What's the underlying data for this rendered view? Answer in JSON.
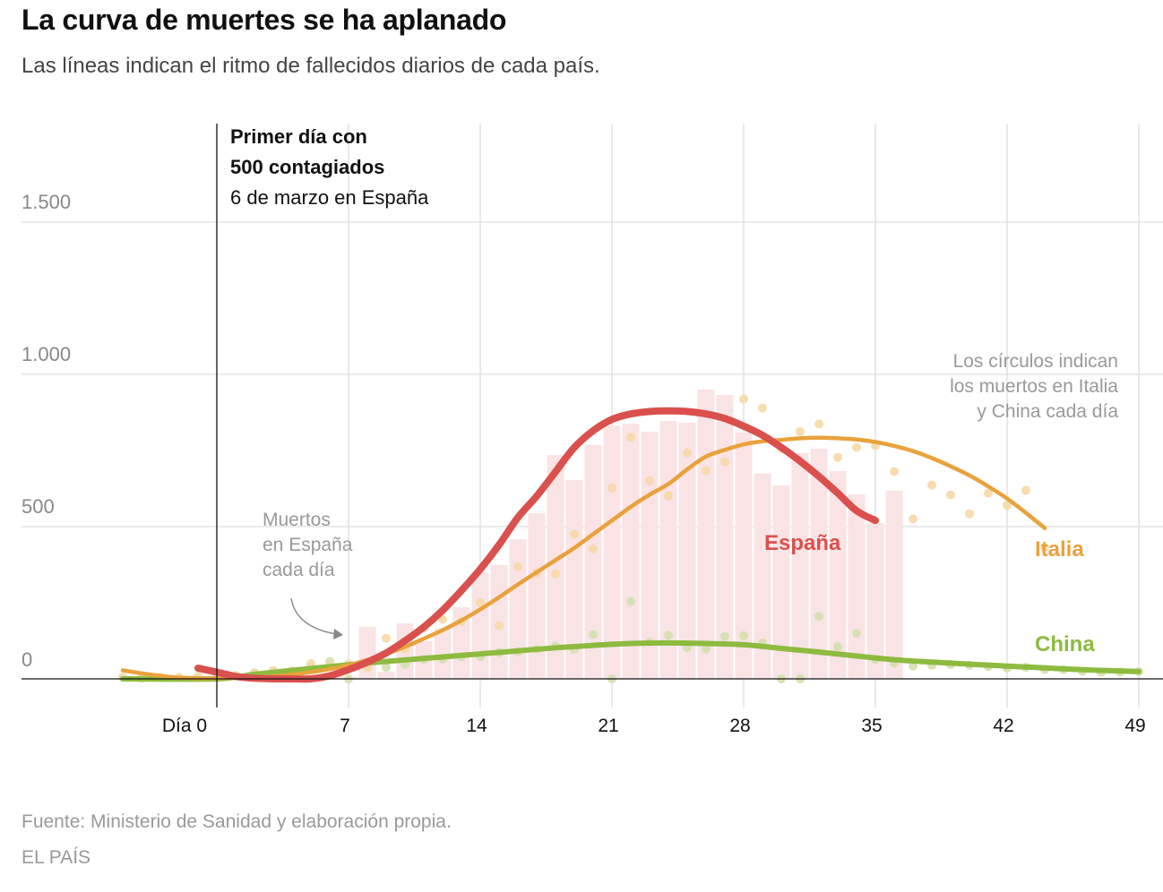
{
  "header": {
    "title": "La curva de muertes se ha aplanado",
    "subtitle": "Las líneas indican el ritmo de fallecidos diarios de cada país."
  },
  "footer": {
    "source": "Fuente: Ministerio de Sanidad y elaboración propia.",
    "brand": "EL PAÍS"
  },
  "colors": {
    "spain": "#d9504d",
    "spain_bar": "#fae3e4",
    "italy": "#e9a23b",
    "italy_dot": "#f6d8a6",
    "china": "#8cbb3f",
    "china_dot": "#d6dfb0",
    "grid": "#dddddd",
    "axis": "#111111"
  },
  "chart_data": {
    "type": "bar+line+scatter",
    "title": "La curva de muertes se ha aplanado",
    "xlabel": "",
    "ylabel": "",
    "xlim": [
      -5,
      50
    ],
    "ylim": [
      0,
      1800
    ],
    "x_ticks": [
      0,
      7,
      14,
      21,
      28,
      35,
      42,
      49
    ],
    "x_tick_labels": [
      "Día 0",
      "7",
      "14",
      "21",
      "28",
      "35",
      "42",
      "49"
    ],
    "y_ticks": [
      0,
      500,
      1000,
      1500
    ],
    "y_tick_labels": [
      "0",
      "500",
      "1.000",
      "1.500"
    ],
    "grid": true,
    "annotations": {
      "day0_line": [
        "Primer día con",
        "500 contagiados",
        "6 de marzo en España"
      ],
      "bars_note": [
        "Muertos",
        "en España",
        "cada día"
      ],
      "circles_note": [
        "Los círculos indican",
        "los muertos en Italia",
        "y China cada día"
      ]
    },
    "series_labels": {
      "spain": "España",
      "italy": "Italia",
      "china": "China"
    },
    "spain_bars": {
      "name": "Muertos en España cada día",
      "x": [
        1,
        2,
        3,
        4,
        5,
        6,
        7,
        8,
        9,
        10,
        11,
        12,
        13,
        14,
        15,
        16,
        17,
        18,
        19,
        20,
        21,
        22,
        23,
        24,
        25,
        26,
        27,
        28,
        29,
        30,
        31,
        32,
        33,
        34,
        35,
        36
      ],
      "values": [
        0,
        1,
        2,
        2,
        0,
        3,
        7,
        171,
        24,
        182,
        124,
        165,
        235,
        350,
        374,
        459,
        544,
        735,
        653,
        768,
        832,
        838,
        812,
        847,
        841,
        950,
        932,
        809,
        674,
        635,
        741,
        756,
        682,
        606,
        512,
        618
      ]
    },
    "spain_trend": {
      "name": "España",
      "x": [
        -1,
        0,
        1,
        2,
        3,
        4,
        5,
        6,
        7,
        8,
        9,
        10,
        11,
        12,
        13,
        14,
        15,
        16,
        17,
        18,
        19,
        20,
        21,
        22,
        23,
        24,
        25,
        26,
        27,
        28,
        29,
        30,
        31,
        32,
        33,
        34,
        35,
        36
      ],
      "values": [
        35,
        22,
        8,
        2,
        0,
        0,
        0,
        10,
        30,
        55,
        85,
        125,
        170,
        225,
        290,
        360,
        440,
        530,
        600,
        680,
        760,
        815,
        852,
        870,
        878,
        880,
        878,
        870,
        855,
        830,
        800,
        760,
        715,
        665,
        610,
        552,
        490,
        510
      ]
    },
    "italy_trend": {
      "name": "Italia",
      "x": [
        -5,
        -4,
        -3,
        -2,
        -1,
        0,
        1,
        2,
        3,
        4,
        5,
        6,
        7,
        8,
        9,
        10,
        11,
        12,
        13,
        14,
        15,
        16,
        17,
        18,
        19,
        20,
        21,
        22,
        23,
        24,
        25,
        26,
        27,
        28,
        29,
        30,
        31,
        32,
        33,
        34,
        35,
        36,
        37,
        38,
        39,
        40,
        41,
        42,
        43,
        44
      ],
      "values": [
        28,
        18,
        10,
        4,
        2,
        2,
        3,
        5,
        8,
        14,
        22,
        32,
        45,
        62,
        82,
        105,
        132,
        160,
        192,
        228,
        268,
        310,
        350,
        390,
        430,
        475,
        520,
        565,
        605,
        640,
        688,
        730,
        752,
        770,
        780,
        785,
        790,
        792,
        790,
        786,
        778,
        765,
        748,
        725,
        698,
        668,
        632,
        592,
        545,
        495
      ]
    },
    "italy_dots": {
      "name": "Muertos en Italia cada día",
      "x": [
        -5,
        -4,
        -3,
        -2,
        -1,
        0,
        1,
        2,
        3,
        4,
        5,
        6,
        7,
        8,
        9,
        10,
        11,
        12,
        13,
        14,
        15,
        16,
        17,
        18,
        19,
        20,
        21,
        22,
        23,
        24,
        25,
        26,
        27,
        28,
        29,
        30,
        31,
        32,
        33,
        34,
        35,
        36,
        37,
        38,
        39,
        40,
        41,
        42,
        43,
        44
      ],
      "values": [
        5,
        2,
        5,
        5,
        8,
        10,
        12,
        18,
        27,
        25,
        50,
        41,
        49,
        36,
        133,
        97,
        168,
        196,
        189,
        250,
        175,
        368,
        349,
        345,
        475,
        427,
        627,
        793,
        651,
        601,
        743,
        683,
        712,
        919,
        889,
        756,
        812,
        837,
        727,
        760,
        766,
        681,
        525,
        636,
        604,
        542,
        610,
        570,
        619,
        431
      ]
    },
    "china_trend": {
      "name": "China",
      "x": [
        -5,
        0,
        2,
        4,
        6,
        8,
        10,
        12,
        14,
        16,
        18,
        20,
        22,
        24,
        26,
        28,
        30,
        32,
        34,
        36,
        38,
        40,
        42,
        44,
        46,
        48,
        49
      ],
      "values": [
        0,
        0,
        15,
        28,
        40,
        52,
        62,
        72,
        82,
        92,
        102,
        110,
        116,
        118,
        116,
        112,
        100,
        88,
        75,
        63,
        55,
        48,
        42,
        36,
        30,
        26,
        24
      ]
    },
    "china_dots": {
      "name": "Muertos en China cada día",
      "x": [
        2,
        3,
        4,
        5,
        6,
        7,
        8,
        9,
        10,
        11,
        12,
        13,
        14,
        15,
        16,
        17,
        18,
        19,
        20,
        21,
        22,
        23,
        24,
        25,
        26,
        27,
        28,
        29,
        30,
        31,
        32,
        33,
        34,
        35,
        36,
        37,
        38,
        39,
        40,
        41,
        42,
        43,
        44,
        45,
        46,
        47,
        48,
        49
      ],
      "values": [
        20,
        26,
        26,
        38,
        57,
        0,
        43,
        38,
        47,
        64,
        65,
        73,
        73,
        86,
        89,
        97,
        108,
        97,
        146,
        0,
        254,
        121,
        143,
        103,
        98,
        139,
        142,
        118,
        0,
        0,
        205,
        105,
        150,
        64,
        52,
        42,
        44,
        47,
        45,
        40,
        35,
        38,
        31,
        30,
        25,
        22,
        22,
        24
      ]
    }
  }
}
